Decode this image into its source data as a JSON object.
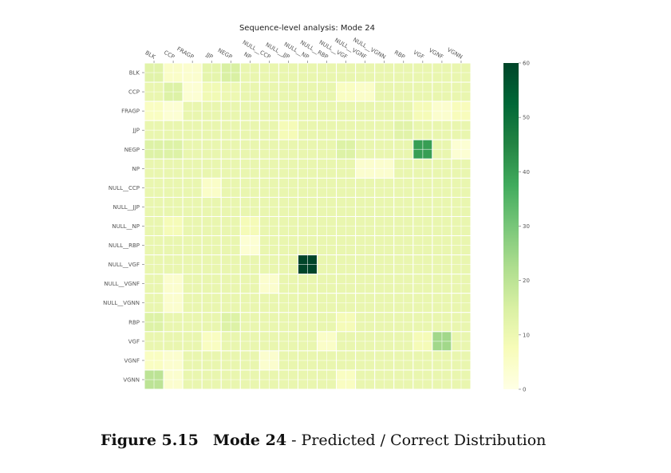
{
  "chart_data": {
    "type": "heatmap",
    "title": "Sequence-level analysis: Mode 24",
    "labels": [
      "BLK",
      "CCP",
      "FRAGP",
      "JJP",
      "NEGP",
      "NP",
      "NULL__CCP",
      "NULL__JJP",
      "NULL__NP",
      "NULL__RBP",
      "NULL__VGF",
      "NULL__VGNF",
      "NULL__VGNN",
      "RBP",
      "VGF",
      "VGNF",
      "VGNN"
    ],
    "ylabel": "",
    "xlabel": "",
    "colorbar": {
      "min": 0,
      "max": 60,
      "ticks": [
        0,
        10,
        20,
        30,
        40,
        50,
        60
      ],
      "colormap": "YlGn"
    },
    "values": [
      [
        13,
        5,
        4,
        12,
        15,
        11,
        11,
        11,
        11,
        11,
        11,
        11,
        11,
        11,
        11,
        11,
        11
      ],
      [
        11,
        14,
        3,
        9,
        10,
        11,
        11,
        11,
        11,
        11,
        6,
        5,
        11,
        11,
        11,
        11,
        11
      ],
      [
        6,
        3,
        11,
        11,
        11,
        11,
        11,
        11,
        11,
        11,
        11,
        11,
        11,
        11,
        8,
        4,
        7
      ],
      [
        11,
        11,
        11,
        11,
        11,
        11,
        11,
        8,
        11,
        11,
        11,
        11,
        11,
        13,
        11,
        11,
        11
      ],
      [
        14,
        14,
        11,
        11,
        11,
        11,
        11,
        11,
        11,
        11,
        14,
        11,
        11,
        11,
        40,
        11,
        3
      ],
      [
        11,
        11,
        11,
        11,
        11,
        11,
        11,
        11,
        11,
        11,
        11,
        4,
        4,
        11,
        11,
        11,
        11
      ],
      [
        11,
        11,
        11,
        5,
        11,
        11,
        11,
        11,
        11,
        11,
        11,
        11,
        11,
        11,
        11,
        11,
        11
      ],
      [
        11,
        11,
        11,
        11,
        11,
        11,
        11,
        11,
        11,
        11,
        11,
        11,
        11,
        11,
        11,
        11,
        11
      ],
      [
        11,
        8,
        11,
        11,
        11,
        8,
        11,
        11,
        11,
        11,
        11,
        11,
        11,
        11,
        11,
        11,
        11
      ],
      [
        11,
        11,
        11,
        11,
        11,
        3,
        11,
        11,
        11,
        11,
        11,
        11,
        11,
        11,
        11,
        11,
        11
      ],
      [
        11,
        11,
        11,
        11,
        11,
        11,
        11,
        11,
        60,
        11,
        11,
        11,
        11,
        11,
        11,
        11,
        11
      ],
      [
        11,
        4,
        11,
        11,
        11,
        11,
        4,
        11,
        11,
        11,
        11,
        11,
        11,
        11,
        11,
        11,
        11
      ],
      [
        11,
        4,
        11,
        11,
        11,
        11,
        11,
        11,
        11,
        11,
        11,
        11,
        11,
        11,
        11,
        11,
        11
      ],
      [
        14,
        11,
        11,
        11,
        14,
        11,
        11,
        11,
        11,
        11,
        8,
        11,
        11,
        11,
        11,
        11,
        11
      ],
      [
        11,
        11,
        11,
        6,
        11,
        11,
        11,
        11,
        11,
        5,
        11,
        11,
        11,
        11,
        8,
        24,
        11
      ],
      [
        6,
        4,
        11,
        11,
        11,
        11,
        4,
        11,
        11,
        11,
        11,
        11,
        11,
        11,
        11,
        11,
        11
      ],
      [
        20,
        4,
        11,
        11,
        11,
        11,
        11,
        11,
        11,
        11,
        6,
        11,
        11,
        11,
        11,
        11,
        11
      ]
    ]
  },
  "caption": {
    "figure": "Figure 5.15",
    "mode": "Mode 24",
    "text": " - Predicted / Correct Distribution"
  }
}
